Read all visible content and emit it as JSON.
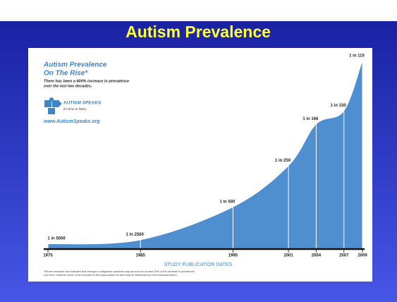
{
  "slide_title": "Autism Prevalence",
  "chart_data": {
    "type": "area",
    "title_lines": [
      "Autism Prevalence",
      "On The Rise*"
    ],
    "subtitle_lines": [
      "There has been a 600% increase in prevalence",
      "over the last two decades."
    ],
    "x": [
      1975,
      1985,
      1995,
      2001,
      2004,
      2007,
      2009
    ],
    "values": [
      5000,
      2500,
      500,
      250,
      166,
      150,
      110
    ],
    "value_labels": [
      "1 in 5000",
      "1 in 2500",
      "1 in 500",
      "1 in 250",
      "1 in 166",
      "1 in 150",
      "1 in 110"
    ],
    "scale": "reciprocal",
    "xlim": [
      1975,
      2009
    ],
    "xticks": [
      1975,
      1985,
      1995,
      2001,
      2004,
      2007,
      2009
    ],
    "xlabel": "STUDY PUBLICATION DATES",
    "color": "#4f8fd0",
    "footnote_lines": [
      "*Recent research has indicated that changes in diagnostic practices may account for at least 25% of the increase in prevalence",
      "over time, however much of the increase is still unaccounted for and may be influenced by environmental factors."
    ]
  },
  "logo": {
    "name": "AUTISM SPEAKS",
    "tagline": "It's time to listen.",
    "url": "www.AutismSpeaks.org"
  }
}
